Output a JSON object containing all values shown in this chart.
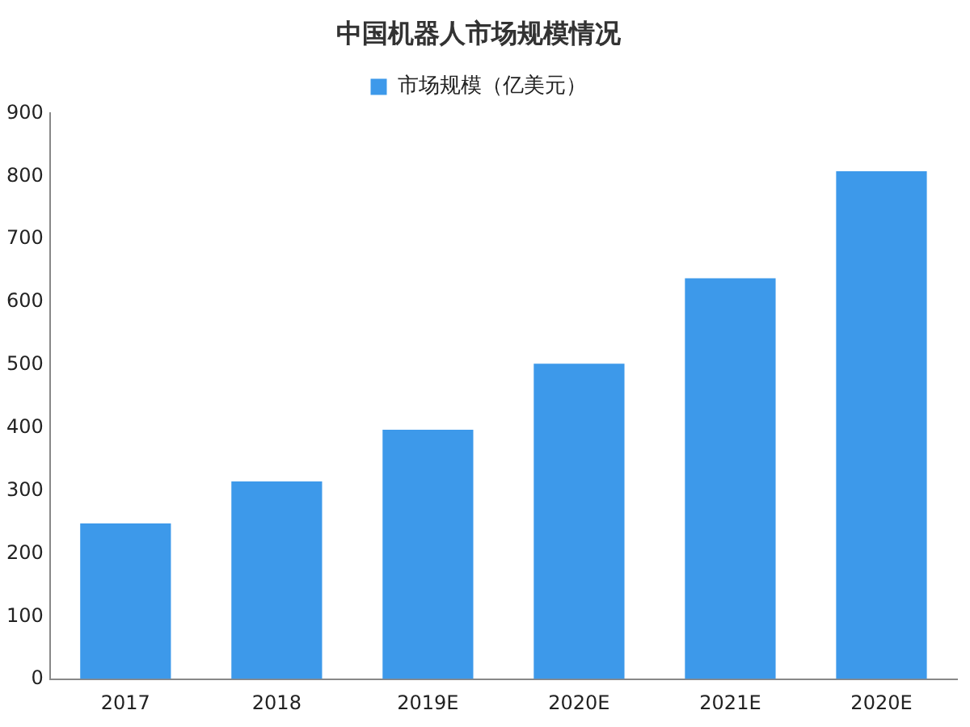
{
  "chart_data": {
    "type": "bar",
    "title": "中国机器人市场规模情况",
    "categories": [
      "2017",
      "2018",
      "2019E",
      "2020E",
      "2021E",
      "2020E"
    ],
    "series": [
      {
        "name": "市场规模（亿美元）",
        "color": "#3d99ea",
        "values": [
          248,
          315,
          397,
          502,
          638,
          808
        ]
      }
    ],
    "ylim": [
      0,
      900
    ],
    "yticks": [
      0,
      100,
      200,
      300,
      400,
      500,
      600,
      700,
      800,
      900
    ],
    "grid": false,
    "legend": "top"
  }
}
